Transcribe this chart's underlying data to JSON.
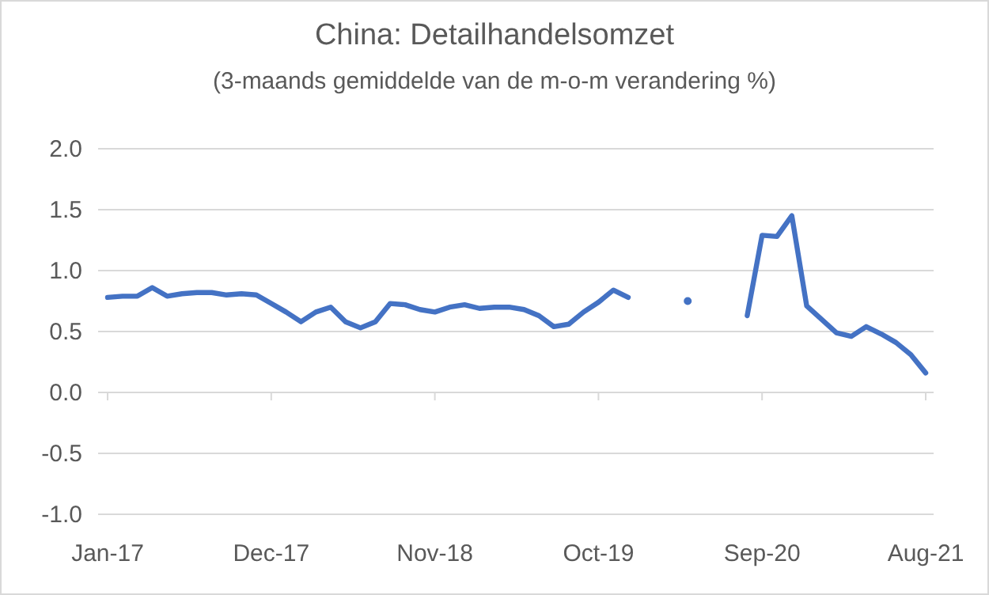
{
  "chart_data": {
    "type": "line",
    "title": "China: Detailhandelsomzet",
    "subtitle": "(3-maands gemiddelde van de m-o-m verandering %)",
    "categories": [
      "Jan-17",
      null,
      null,
      null,
      null,
      null,
      null,
      null,
      null,
      null,
      null,
      "Dec-17",
      null,
      null,
      null,
      null,
      null,
      null,
      null,
      null,
      null,
      null,
      "Nov-18",
      null,
      null,
      null,
      null,
      null,
      null,
      null,
      null,
      null,
      null,
      "Oct-19",
      null,
      null,
      null,
      null,
      null,
      null,
      null,
      null,
      null,
      null,
      "Sep-20",
      null,
      null,
      null,
      null,
      null,
      null,
      null,
      null,
      null,
      null,
      "Aug-21"
    ],
    "series": [
      {
        "color": "#4472c4",
        "values": [
          0.78,
          0.79,
          0.79,
          0.86,
          0.79,
          0.81,
          0.82,
          0.82,
          0.8,
          0.81,
          0.8,
          0.73,
          0.66,
          0.58,
          0.66,
          0.7,
          0.58,
          0.53,
          0.58,
          0.73,
          0.72,
          0.68,
          0.66,
          0.7,
          0.72,
          0.69,
          0.7,
          0.7,
          0.68,
          0.63,
          0.54,
          0.56,
          0.66,
          0.74,
          0.84,
          0.78,
          null,
          null,
          null,
          0.75,
          null,
          null,
          null,
          0.63,
          1.29,
          1.28,
          1.45,
          0.71,
          0.6,
          0.49,
          0.46,
          0.54,
          0.48,
          0.41,
          0.31,
          0.16
        ]
      }
    ],
    "ylim": [
      -1,
      2
    ],
    "yticks": [
      {
        "value": -1,
        "label": "-1.0"
      },
      {
        "value": -0.5,
        "label": "-0.5"
      },
      {
        "value": 0,
        "label": "0.0"
      },
      {
        "value": 0.5,
        "label": "0.5"
      },
      {
        "value": 1,
        "label": "1.0"
      },
      {
        "value": 1.5,
        "label": "1.5"
      },
      {
        "value": 2,
        "label": "2.0"
      }
    ],
    "grid": "y",
    "marker": "none",
    "line_style": "solid"
  }
}
